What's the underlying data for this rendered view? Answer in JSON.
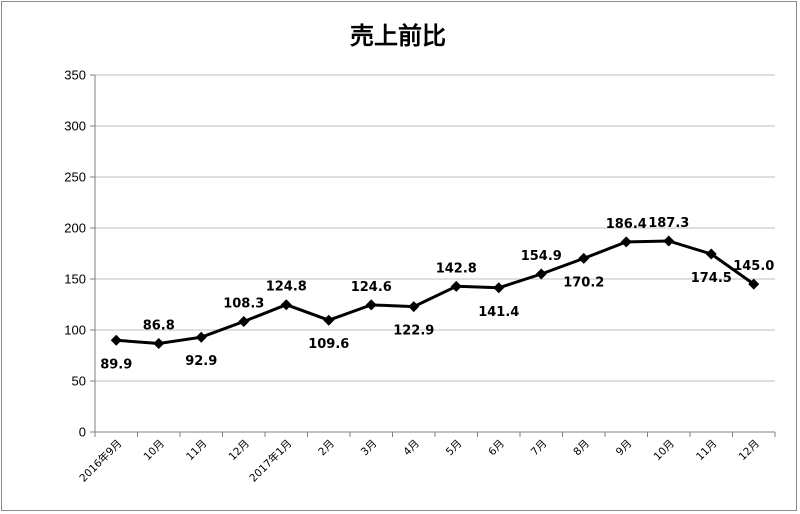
{
  "chart_data": {
    "type": "line",
    "title": "売上前比",
    "categories": [
      "2016年9月",
      "10月",
      "11月",
      "12月",
      "2017年1月",
      "2月",
      "3月",
      "4月",
      "5月",
      "6月",
      "7月",
      "8月",
      "9月",
      "10月",
      "11月",
      "12月"
    ],
    "series": [
      {
        "values": [
          89.9,
          86.8,
          92.9,
          108.3,
          124.8,
          109.6,
          124.6,
          122.9,
          142.8,
          141.4,
          154.9,
          170.2,
          186.4,
          187.3,
          174.5,
          145.0
        ]
      }
    ],
    "data_labels": [
      "89.9",
      "86.8",
      "92.9",
      "108.3",
      "124.8",
      "109.6",
      "124.6",
      "122.9",
      "142.8",
      "141.4",
      "154.9",
      "170.2",
      "186.4",
      "187.3",
      "174.5",
      "145.0"
    ],
    "label_side": [
      "below",
      "above",
      "below",
      "above",
      "above",
      "below",
      "above",
      "below",
      "above",
      "below",
      "above",
      "below",
      "above",
      "above",
      "below",
      "above"
    ],
    "ylim": [
      0,
      350
    ],
    "yticks": [
      0,
      50,
      100,
      150,
      200,
      250,
      300,
      350
    ],
    "grid": true,
    "legend": "none",
    "colors": {
      "line": "#000000",
      "grid": "#bfbfbf",
      "axis": "#808080"
    }
  }
}
